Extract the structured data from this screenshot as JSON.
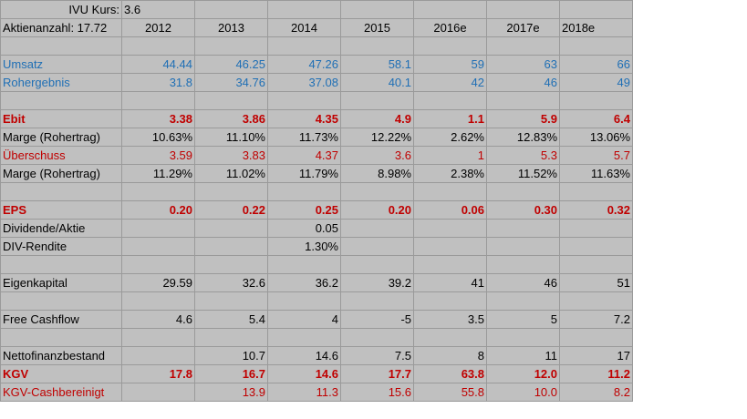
{
  "kurs": {
    "label": "IVU Kurs:",
    "value": "3.6"
  },
  "header": {
    "label": "Aktienanzahl: 17.72",
    "years": [
      "2012",
      "2013",
      "2014",
      "2015",
      "2016e",
      "2017e",
      "2018e"
    ]
  },
  "colors": {
    "blue": "#1f6fb5",
    "red": "#c00000",
    "green": "#1ea446",
    "cell": "#c0c0c0"
  },
  "rows": [
    {
      "label": "",
      "values": [
        "",
        "",
        "",
        "",
        "",
        "",
        ""
      ]
    },
    {
      "label": "Umsatz",
      "style": "blue",
      "values": [
        "44.44",
        "46.25",
        "47.26",
        "58.1",
        "59",
        "63",
        "66"
      ]
    },
    {
      "label": "Rohergebnis",
      "style": "blue",
      "values": [
        "31.8",
        "34.76",
        "37.08",
        "40.1",
        "42",
        "46",
        "49"
      ]
    },
    {
      "label": "",
      "values": [
        "",
        "",
        "",
        "",
        "",
        "",
        ""
      ]
    },
    {
      "label": "Ebit",
      "style": "red-bold",
      "values": [
        "3.38",
        "3.86",
        "4.35",
        "4.9",
        "1.1",
        "5.9",
        "6.4"
      ]
    },
    {
      "label": "Marge (Rohertrag)",
      "style": "plain",
      "values": [
        "10.63%",
        "11.10%",
        "11.73%",
        "12.22%",
        "2.62%",
        "12.83%",
        "13.06%"
      ]
    },
    {
      "label": "Überschuss",
      "style": "red",
      "values": [
        "3.59",
        "3.83",
        "4.37",
        "3.6",
        "1",
        "5.3",
        "5.7"
      ]
    },
    {
      "label": "Marge (Rohertrag)",
      "style": "plain",
      "values": [
        "11.29%",
        "11.02%",
        "11.79%",
        "8.98%",
        "2.38%",
        "11.52%",
        "11.63%"
      ]
    },
    {
      "label": "",
      "values": [
        "",
        "",
        "",
        "",
        "",
        "",
        ""
      ]
    },
    {
      "label": "EPS",
      "style": "red-bold",
      "values": [
        "0.20",
        "0.22",
        "0.25",
        "0.20",
        "0.06",
        "0.30",
        "0.32"
      ]
    },
    {
      "label": "Dividende/Aktie",
      "style": "plain",
      "values": [
        "",
        "",
        "0.05",
        "",
        "",
        "",
        ""
      ]
    },
    {
      "label": "DIV-Rendite",
      "style": "plain",
      "values": [
        "",
        "",
        "1.30%",
        "",
        "",
        "",
        ""
      ]
    },
    {
      "label": "",
      "values": [
        "",
        "",
        "",
        "",
        "",
        "",
        ""
      ]
    },
    {
      "label": "Eigenkapital",
      "style": "plain",
      "values": [
        "29.59",
        "32.6",
        "36.2",
        "39.2",
        "41",
        "46",
        "51"
      ]
    },
    {
      "label": "",
      "values": [
        "",
        "",
        "",
        "",
        "",
        "",
        ""
      ]
    },
    {
      "label": "Free Cashflow",
      "style": "plain",
      "values": [
        "4.6",
        "5.4",
        "4",
        "-5",
        "3.5",
        "5",
        "7.2"
      ]
    },
    {
      "label": "",
      "values": [
        "",
        "",
        "",
        "",
        "",
        "",
        ""
      ]
    },
    {
      "label": "Nettofinanzbestand",
      "style": "plain",
      "values": [
        "",
        "10.7",
        "14.6",
        "7.5",
        "8",
        "11",
        "17"
      ]
    },
    {
      "label": "KGV",
      "style": "red-bold",
      "values": [
        "17.8",
        "16.7",
        "14.6",
        "17.7",
        "63.8",
        "12.0",
        "11.2"
      ]
    },
    {
      "label": "KGV-Cashbereinigt",
      "style": "red",
      "values": [
        "",
        "13.9",
        "11.3",
        "15.6",
        "55.8",
        "10.0",
        "8.2"
      ]
    }
  ]
}
